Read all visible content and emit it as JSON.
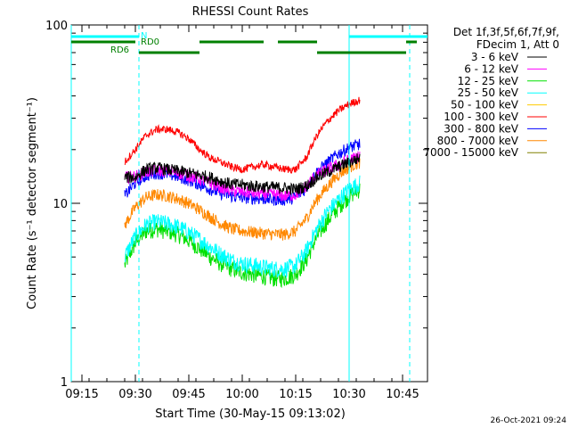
{
  "chart_data": {
    "type": "line",
    "title": "RHESSI Count Rates",
    "xlabel": "Start Time (30-May-15 09:13:02)",
    "ylabel": "Count Rate (s⁻¹ detector segment⁻¹)",
    "y_scale": "log",
    "ylim": [
      1,
      100
    ],
    "xlim": [
      "09:12",
      "10:52"
    ],
    "x_ticks": [
      "09:15",
      "09:30",
      "09:45",
      "10:00",
      "10:15",
      "10:30",
      "10:45"
    ],
    "y_ticks": [
      "1",
      "10",
      "100"
    ],
    "legend_title": [
      "Det 1f,3f,5f,6f,7f,9f,",
      "FDecim 1, Att 0"
    ],
    "legend_position": "right",
    "series": [
      {
        "name": "3 - 6 keV",
        "color": "#000000",
        "x": [
          "09:27",
          "09:30",
          "09:33",
          "09:36",
          "09:39",
          "09:42",
          "09:45",
          "09:48",
          "09:51",
          "09:54",
          "09:57",
          "10:00",
          "10:03",
          "10:06",
          "10:09",
          "10:12",
          "10:15",
          "10:18",
          "10:21",
          "10:24",
          "10:27",
          "10:30",
          "10:33"
        ],
        "values": [
          14,
          14,
          15.5,
          15.8,
          15.5,
          15.2,
          14.8,
          14.4,
          14,
          13.3,
          12.8,
          12.7,
          12.5,
          12.4,
          12.3,
          12.2,
          12,
          12.5,
          14,
          15,
          16,
          17,
          18
        ]
      },
      {
        "name": "6 - 12 keV",
        "color": "#ff00ff",
        "x": [
          "09:27",
          "09:30",
          "09:33",
          "09:36",
          "09:39",
          "09:42",
          "09:45",
          "09:48",
          "09:51",
          "09:54",
          "09:57",
          "10:00",
          "10:03",
          "10:06",
          "10:09",
          "10:12",
          "10:15",
          "10:18",
          "10:21",
          "10:24",
          "10:27",
          "10:30",
          "10:33"
        ],
        "values": [
          14,
          14.2,
          15,
          15.3,
          15.2,
          14.8,
          14.3,
          13.7,
          12.9,
          12.3,
          11.8,
          11.6,
          11.4,
          11.3,
          11.2,
          11,
          11.2,
          12.5,
          14.5,
          15.5,
          16.5,
          17.5,
          18.5
        ]
      },
      {
        "name": "12 - 25 keV",
        "color": "#00e000",
        "x": [
          "09:27",
          "09:30",
          "09:33",
          "09:36",
          "09:39",
          "09:42",
          "09:45",
          "09:48",
          "09:51",
          "09:54",
          "09:57",
          "10:00",
          "10:03",
          "10:06",
          "10:09",
          "10:12",
          "10:15",
          "10:18",
          "10:21",
          "10:24",
          "10:27",
          "10:30",
          "10:33"
        ],
        "values": [
          4.5,
          6,
          7,
          7.2,
          7,
          6.7,
          6.2,
          5.6,
          5,
          4.6,
          4.3,
          4.1,
          4,
          3.9,
          3.8,
          3.8,
          4,
          4.8,
          6.5,
          8,
          9.5,
          11,
          12
        ]
      },
      {
        "name": "25 - 50 keV",
        "color": "#00ffff",
        "x": [
          "09:27",
          "09:30",
          "09:33",
          "09:36",
          "09:39",
          "09:42",
          "09:45",
          "09:48",
          "09:51",
          "09:54",
          "09:57",
          "10:00",
          "10:03",
          "10:06",
          "10:09",
          "10:12",
          "10:15",
          "10:18",
          "10:21",
          "10:24",
          "10:27",
          "10:30",
          "10:33"
        ],
        "values": [
          5,
          6.5,
          7.6,
          7.9,
          7.7,
          7.4,
          6.9,
          6.3,
          5.7,
          5.2,
          4.8,
          4.6,
          4.5,
          4.4,
          4.3,
          4.3,
          4.5,
          5.4,
          7.2,
          9,
          10.5,
          12,
          13
        ]
      },
      {
        "name": "50 - 100 keV",
        "color": "#ffcc00",
        "x": [],
        "values": []
      },
      {
        "name": "100 - 300 keV",
        "color": "#ff0000",
        "x": [
          "09:27",
          "09:30",
          "09:33",
          "09:36",
          "09:39",
          "09:42",
          "09:45",
          "09:48",
          "09:51",
          "09:54",
          "09:57",
          "10:00",
          "10:03",
          "10:06",
          "10:09",
          "10:12",
          "10:15",
          "10:18",
          "10:21",
          "10:24",
          "10:27",
          "10:30",
          "10:33"
        ],
        "values": [
          17,
          20,
          24,
          26,
          26,
          25,
          23,
          20,
          18,
          17,
          16,
          15.5,
          16,
          16.5,
          16,
          15.5,
          15.5,
          18,
          24,
          29,
          33,
          36,
          38
        ]
      },
      {
        "name": "300 - 800 keV",
        "color": "#0000ff",
        "x": [
          "09:27",
          "09:30",
          "09:33",
          "09:36",
          "09:39",
          "09:42",
          "09:45",
          "09:48",
          "09:51",
          "09:54",
          "09:57",
          "10:00",
          "10:03",
          "10:06",
          "10:09",
          "10:12",
          "10:15",
          "10:18",
          "10:21",
          "10:24",
          "10:27",
          "10:30",
          "10:33"
        ],
        "values": [
          11,
          13,
          14.3,
          14.8,
          14.6,
          14.1,
          13.5,
          12.8,
          12,
          11.4,
          11,
          10.8,
          10.7,
          10.6,
          10.5,
          10.5,
          10.8,
          12.2,
          15,
          17,
          19,
          20.5,
          21.5
        ]
      },
      {
        "name": "800 - 7000 keV",
        "color": "#ff8800",
        "x": [
          "09:27",
          "09:30",
          "09:33",
          "09:36",
          "09:39",
          "09:42",
          "09:45",
          "09:48",
          "09:51",
          "09:54",
          "09:57",
          "10:00",
          "10:03",
          "10:06",
          "10:09",
          "10:12",
          "10:15",
          "10:18",
          "10:21",
          "10:24",
          "10:27",
          "10:30",
          "10:33"
        ],
        "values": [
          7.5,
          9.5,
          10.8,
          11.2,
          11,
          10.6,
          10,
          9.2,
          8.4,
          7.7,
          7.2,
          7,
          6.9,
          6.8,
          6.7,
          6.7,
          7,
          8.2,
          10.5,
          12.5,
          14.5,
          16,
          17
        ]
      },
      {
        "name": "7000 - 15000 keV",
        "color": "#808000",
        "x": [],
        "values": []
      }
    ],
    "overlays": {
      "vertical_lines": [
        {
          "x": "09:12",
          "style": "solid",
          "color": "#00ffff"
        },
        {
          "x": "09:31",
          "style": "dashed",
          "color": "#00ffff"
        },
        {
          "x": "10:30",
          "style": "solid",
          "color": "#00ffff"
        },
        {
          "x": "10:47",
          "style": "dashed",
          "color": "#00ffff"
        }
      ],
      "flags": [
        {
          "label": "N",
          "color": "#00ffff",
          "level": 88,
          "segments": [
            [
              "09:12",
              "09:31"
            ],
            [
              "10:30",
              "10:52"
            ]
          ]
        },
        {
          "label": "RD0",
          "color": "#008000",
          "level": 78,
          "segments": [
            [
              "09:12",
              "09:30"
            ],
            [
              "09:48",
              "10:06"
            ],
            [
              "10:10",
              "10:21"
            ],
            [
              "10:46",
              "10:49"
            ]
          ]
        },
        {
          "label": "RD6",
          "color": "#008000",
          "level": 68,
          "segments": [
            [
              "09:31",
              "09:48"
            ],
            [
              "10:21",
              "10:46"
            ]
          ]
        }
      ]
    }
  },
  "footer_timestamp": "26-Oct-2021 09:24"
}
